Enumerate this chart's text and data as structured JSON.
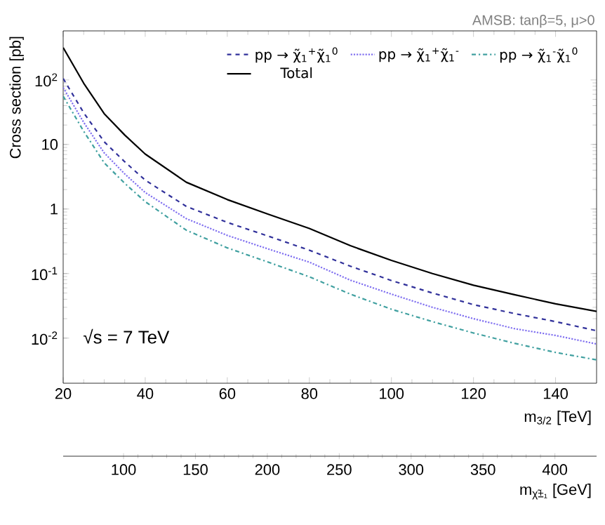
{
  "chart_data": {
    "type": "line",
    "xlabel": "m$_{3/2}$ [TeV]",
    "ylabel": "Cross section [pb]",
    "x2label": "m$_{χ̃±₁}$ [GeV]",
    "annotations": [
      "AMSB: tanβ=5, μ>0",
      "√s = 7 TeV"
    ],
    "x": [
      20,
      25,
      30,
      35,
      40,
      50,
      60,
      70,
      80,
      90,
      100,
      110,
      120,
      130,
      140,
      150
    ],
    "xlim": [
      20,
      150
    ],
    "xticks": [
      20,
      40,
      60,
      80,
      100,
      120,
      140
    ],
    "x2lim": [
      58,
      429
    ],
    "x2ticks": [
      100,
      150,
      200,
      250,
      300,
      350,
      400
    ],
    "ylim": [
      0.002,
      575
    ],
    "log": "y",
    "yticks": [
      {
        "value": 0.01,
        "label": "10$^{-2}$"
      },
      {
        "value": 0.1,
        "label": "10$^{-1}$"
      },
      {
        "value": 1,
        "label": "1"
      },
      {
        "value": 10,
        "label": "10"
      },
      {
        "value": 100,
        "label": "10$^{2}$"
      }
    ],
    "grid": false,
    "legend": "top right",
    "marker": "none",
    "series": [
      {
        "name": "pp → χ̃$_{1}$$^{+}$χ̃$_{1}$$^{0}$",
        "color": "#30309a",
        "line_style": "dashed",
        "values": [
          105,
          31,
          11,
          5.4,
          2.8,
          1.1,
          0.62,
          0.38,
          0.23,
          0.13,
          0.078,
          0.05,
          0.033,
          0.024,
          0.018,
          0.013
        ]
      },
      {
        "name": "pp → χ̃$_{1}$$^{+}$χ̃$_{1}$$^{-}$",
        "color": "#8070f0",
        "line_style": "dotted",
        "values": [
          76,
          22,
          7.4,
          3.5,
          1.8,
          0.71,
          0.39,
          0.24,
          0.15,
          0.079,
          0.048,
          0.03,
          0.02,
          0.014,
          0.011,
          0.0081
        ]
      },
      {
        "name": "pp → χ̃$_{1}$$^{-}$χ̃$_{1}$$^{0}$",
        "color": "#40a0a0",
        "line_style": "dashdot",
        "values": [
          56,
          16,
          5.2,
          2.5,
          1.3,
          0.47,
          0.25,
          0.15,
          0.089,
          0.048,
          0.028,
          0.018,
          0.012,
          0.0083,
          0.006,
          0.0046
        ]
      },
      {
        "name": "Total",
        "color": "#000000",
        "line_style": "solid",
        "values": [
          316,
          89,
          30,
          14,
          7.1,
          2.6,
          1.4,
          0.83,
          0.5,
          0.27,
          0.16,
          0.1,
          0.066,
          0.047,
          0.034,
          0.026
        ]
      }
    ]
  }
}
